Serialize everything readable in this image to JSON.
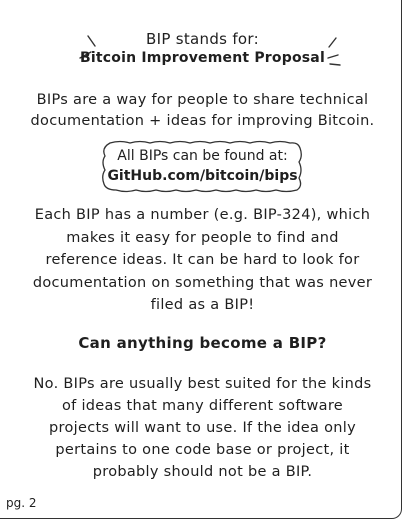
{
  "heading": {
    "line1": "BIP stands for:",
    "line2": "Bitcoin Improvement Proposal"
  },
  "intro": {
    "line1": "BIPs are a way for people to share technical",
    "line2": "documentation + ideas for improving Bitcoin."
  },
  "callout": {
    "line1": "All BIPs can be found at:",
    "line2": "GitHub.com/bitcoin/bips"
  },
  "numbering": {
    "line1": "Each BIP has a number (e.g. BIP-324), which",
    "line2": "makes it easy for people to find and",
    "line3": "reference ideas. It can be hard to look for",
    "line4": "documentation on something that was never",
    "line5": "filed as a BIP!"
  },
  "question": "Can anything become a BIP?",
  "answer": {
    "line1": "No. BIPs are usually best suited for the kinds",
    "line2": "of ideas that many different software",
    "line3": "projects will want to use. If the idea only",
    "line4": "pertains to one code base or project, it",
    "line5": "probably should not be a BIP."
  },
  "page_number": "pg. 2"
}
